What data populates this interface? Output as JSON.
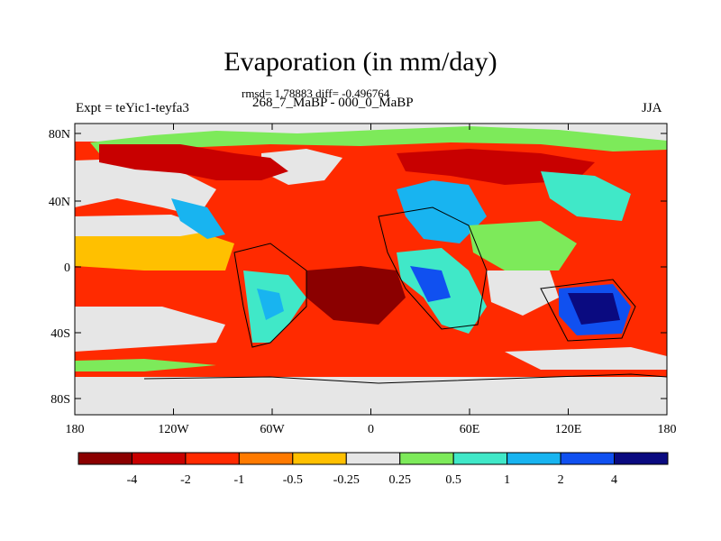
{
  "title": "Evaporation (in mm/day)",
  "stats": "rmsd= 1.78883 diff= -0.496764",
  "experiment": "Expt = teYic1-teyfa3",
  "period": "268_7_MaBP - 000_0_MaBP",
  "season": "JJA",
  "lat_ticks": [
    "80N",
    "40N",
    "0",
    "40S",
    "80S"
  ],
  "lon_ticks": [
    "180",
    "120W",
    "60W",
    "0",
    "60E",
    "120E",
    "180"
  ],
  "colorbar": {
    "labels": [
      "-4",
      "-2",
      "-1",
      "-0.5",
      "-0.25",
      "0.25",
      "0.5",
      "1",
      "2",
      "4"
    ],
    "colors": [
      "#8b0000",
      "#c80000",
      "#ff2a00",
      "#ff7a00",
      "#ffc000",
      "#e6e6e6",
      "#7dea5a",
      "#40e8c8",
      "#18b4f0",
      "#1050f0",
      "#0a0a80"
    ]
  }
}
